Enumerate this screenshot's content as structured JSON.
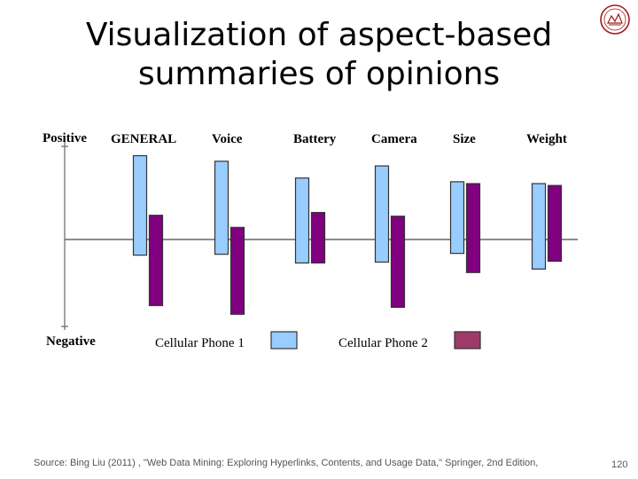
{
  "slide": {
    "title_line1": "Visualization of aspect-based",
    "title_line2": "summaries of opinions",
    "source": "Source: Bing Liu (2011) , \"Web Data Mining: Exploring Hyperlinks, Contents, and Usage Data,\" Springer, 2nd Edition,",
    "slide_number": "120",
    "logo_icon": "university-seal-icon"
  },
  "chart_data": {
    "type": "bar",
    "categories": [
      "GENERAL",
      "Voice",
      "Battery",
      "Camera",
      "Size",
      "Weight"
    ],
    "axis_top_label": "Positive",
    "axis_bottom_label": "Negative",
    "ylim": [
      -1,
      1
    ],
    "grid": false,
    "legend_position": "bottom",
    "series": [
      {
        "name": "Cellular Phone 1",
        "color": "#99ccff",
        "positive": [
          0.9,
          0.84,
          0.66,
          0.79,
          0.62,
          0.6
        ],
        "negative": [
          0.18,
          0.17,
          0.27,
          0.26,
          0.16,
          0.34
        ]
      },
      {
        "name": "Cellular Phone 2",
        "color": "#800080",
        "positive": [
          0.26,
          0.13,
          0.29,
          0.25,
          0.6,
          0.58
        ],
        "negative": [
          0.76,
          0.86,
          0.27,
          0.78,
          0.38,
          0.25
        ]
      }
    ],
    "legend_swatch_colors": [
      "#99ccff",
      "#9e3a6a"
    ]
  }
}
